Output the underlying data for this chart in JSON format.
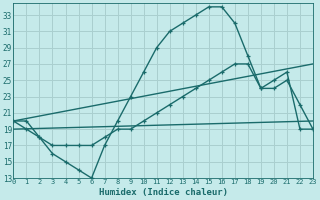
{
  "bg_color": "#c5eaea",
  "grid_color": "#aacfcf",
  "line_color": "#1a6b6b",
  "lw": 1.0,
  "xlabel": "Humidex (Indice chaleur)",
  "ylabel_ticks": [
    13,
    15,
    17,
    19,
    21,
    23,
    25,
    27,
    29,
    31,
    33
  ],
  "xticks": [
    0,
    1,
    2,
    3,
    4,
    5,
    6,
    7,
    8,
    9,
    10,
    11,
    12,
    13,
    14,
    15,
    16,
    17,
    18,
    19,
    20,
    21,
    22,
    23
  ],
  "xlim": [
    0,
    23
  ],
  "ylim": [
    13,
    34.5
  ],
  "series1_x": [
    0,
    1,
    2,
    3,
    4,
    5,
    6,
    7,
    8,
    9,
    10,
    11,
    12,
    13,
    14,
    15,
    16,
    17,
    18,
    19,
    20,
    21,
    22,
    23
  ],
  "series1_y": [
    20,
    19,
    18,
    16,
    15,
    14,
    13,
    17,
    20,
    23,
    26,
    29,
    31,
    32,
    33,
    34,
    34,
    32,
    28,
    24,
    24,
    25,
    22,
    19
  ],
  "series2_x": [
    0,
    1,
    2,
    3,
    4,
    5,
    6,
    7,
    8,
    9,
    10,
    11,
    12,
    13,
    14,
    15,
    16,
    17,
    18,
    19,
    20,
    21,
    22,
    23
  ],
  "series2_y": [
    20,
    20,
    18,
    17,
    17,
    17,
    17,
    18,
    19,
    19,
    20,
    21,
    22,
    23,
    24,
    25,
    26,
    27,
    27,
    24,
    25,
    26,
    19,
    19
  ],
  "series3_x": [
    0,
    23
  ],
  "series3_y": [
    20,
    27
  ],
  "series4_x": [
    0,
    23
  ],
  "series4_y": [
    19,
    20
  ],
  "title_fontsize": 6,
  "xlabel_fontsize": 6.5,
  "ylabel_fontsize": 5.5,
  "xtick_fontsize": 5,
  "ytick_fontsize": 5.5
}
